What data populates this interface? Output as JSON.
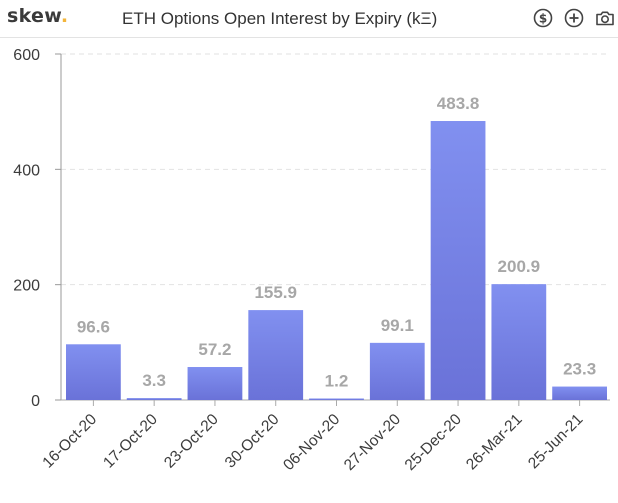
{
  "header": {
    "logo_text": "skew",
    "logo_dot": ".",
    "title": "ETH Options Open Interest by Expiry (kΞ)"
  },
  "toolbar": {
    "icons": [
      "dollar-icon",
      "plus-icon",
      "camera-icon"
    ]
  },
  "colors": {
    "bar_top": "#8190f0",
    "bar_bottom": "#6a72d8",
    "data_label": "#a7a7a7",
    "logo_dot": "#f3b53b"
  },
  "chart_data": {
    "type": "bar",
    "title": "ETH Options Open Interest by Expiry (kΞ)",
    "xlabel": "",
    "ylabel": "",
    "categories": [
      "16-Oct-20",
      "17-Oct-20",
      "23-Oct-20",
      "30-Oct-20",
      "06-Nov-20",
      "27-Nov-20",
      "25-Dec-20",
      "26-Mar-21",
      "25-Jun-21"
    ],
    "values": [
      96.6,
      3.3,
      57.2,
      155.9,
      1.2,
      99.1,
      483.8,
      200.9,
      23.3
    ],
    "data_labels": [
      "96.6",
      "3.3",
      "57.2",
      "155.9",
      "1.2",
      "99.1",
      "483.8",
      "200.9",
      "23.3"
    ],
    "ylim": [
      0,
      600
    ],
    "yticks": [
      0,
      200,
      400,
      600
    ],
    "grid": true,
    "legend": "none"
  }
}
